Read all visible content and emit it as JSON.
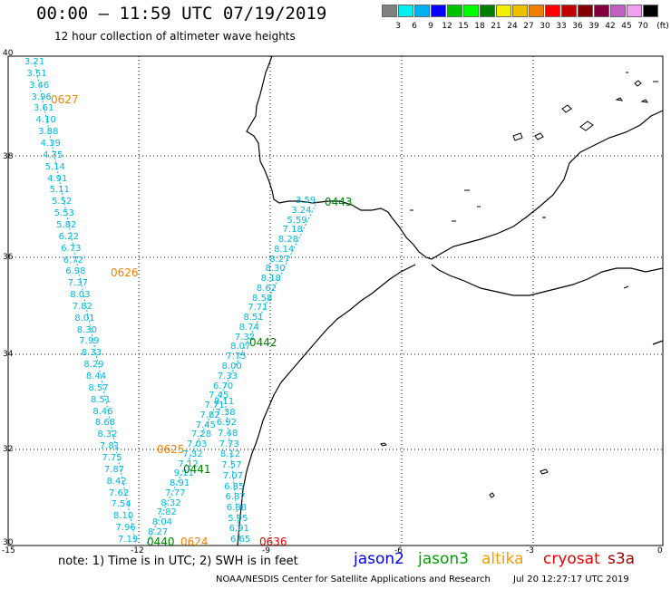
{
  "header": {
    "title": "00:00 – 11:59 UTC 07/19/2019",
    "subtitle": "12 hour collection of altimeter wave heights"
  },
  "colorbar": {
    "colors": [
      "#808080",
      "#00f0f0",
      "#00b0f0",
      "#0000ff",
      "#00c000",
      "#00ff00",
      "#008000",
      "#f0f000",
      "#f0c000",
      "#f08000",
      "#ff0000",
      "#c00000",
      "#800000",
      "#800040",
      "#c060c0",
      "#f0a0f0",
      "#000000"
    ],
    "labels": [
      "3",
      "6",
      "9",
      "12",
      "15",
      "18",
      "21",
      "24",
      "27",
      "30",
      "33",
      "36",
      "39",
      "42",
      "45",
      "70"
    ],
    "unit": "(ft)"
  },
  "axes": {
    "lat_labels": [
      "40",
      "38",
      "36",
      "34",
      "32",
      "30"
    ],
    "lon_labels": [
      "-15",
      "-12",
      "-9",
      "-6",
      "-3",
      "0"
    ]
  },
  "tracks": {
    "track_a": {
      "color": "#00b8d8",
      "values": [
        "3.21",
        "3.51",
        "3.46",
        "3.96",
        "3.61",
        "4.10",
        "3.88",
        "4.39",
        "4.75",
        "5.14",
        "4.91",
        "5.11",
        "5.52",
        "5.53",
        "5.82",
        "6.22",
        "6.73",
        "6.72",
        "6.98",
        "7.37",
        "8.03",
        "7.82",
        "8.01",
        "8.30",
        "7.99",
        "8.33",
        "8.29",
        "8.44",
        "8.57",
        "8.51",
        "8.46",
        "8.68",
        "8.32",
        "7.81",
        "7.75",
        "7.87",
        "8.42",
        "7.62",
        "7.54",
        "8.10",
        "7.96",
        "7.19"
      ]
    },
    "track_b": {
      "color": "#00b8d8",
      "values": [
        "3.59",
        "3.24",
        "5.59",
        "7.18",
        "8.28",
        "8.14",
        "8.27",
        "8.30",
        "8.18",
        "8.62",
        "8.58",
        "7.71",
        "8.51",
        "8.74",
        "7.32",
        "8.07",
        "7.75",
        "8.00",
        "7.33",
        "6.70",
        "7.45",
        "7.71",
        "7.82",
        "7.45",
        "7.28",
        "7.03",
        "7.32",
        "7.12",
        "9.11",
        "8.91",
        "7.77",
        "8.32",
        "7.82",
        "8.04",
        "8.27"
      ]
    },
    "track_c": {
      "color": "#00b8d8",
      "values": [
        "8.11",
        "7.38",
        "6.92",
        "7.48",
        "7.73",
        "8.12",
        "7.57",
        "7.07",
        "6.85",
        "6.87",
        "6.88",
        "5.95",
        "6.91",
        "6.65"
      ]
    }
  },
  "time_labels": [
    {
      "text": "0627",
      "color": "#f08000"
    },
    {
      "text": "0626",
      "color": "#f08000"
    },
    {
      "text": "0625",
      "color": "#f08000"
    },
    {
      "text": "0624",
      "color": "#f08000"
    },
    {
      "text": "0443",
      "color": "#008000"
    },
    {
      "text": "0442",
      "color": "#008000"
    },
    {
      "text": "0441",
      "color": "#008000"
    },
    {
      "text": "0440",
      "color": "#008000"
    },
    {
      "text": "0636",
      "color": "#e00000"
    }
  ],
  "footer": {
    "note": "note: 1) Time is in UTC; 2) SWH is in feet",
    "legend": [
      {
        "name": "jason2",
        "color": "#0000e0"
      },
      {
        "name": "jason3",
        "color": "#00a000"
      },
      {
        "name": "altika",
        "color": "#f0a000"
      },
      {
        "name": "cryosat",
        "color": "#e00000"
      },
      {
        "name": "s3a",
        "color": "#a00000"
      }
    ],
    "credit": "NOAA/NESDIS Center for Satellite Applications and Research",
    "stamp": "Jul 20 12:27:17 UTC 2019"
  }
}
